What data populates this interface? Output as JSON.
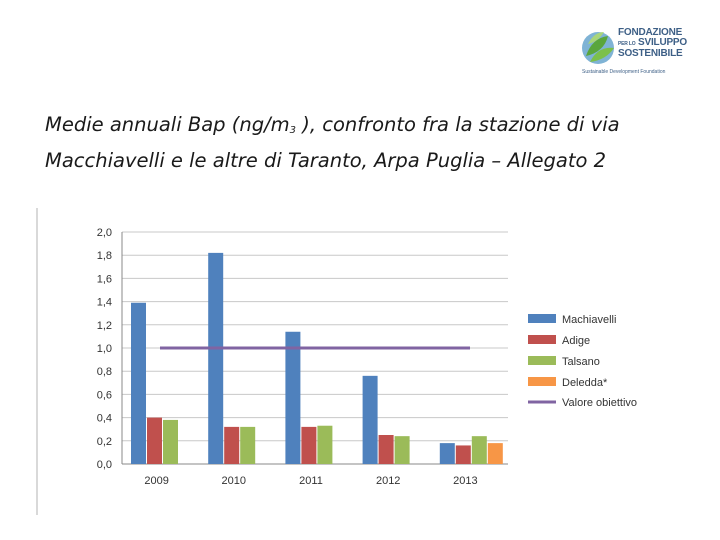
{
  "logo": {
    "line1": "FONDAZIONE",
    "line2_small": "PER LO",
    "line2": "SVILUPPO",
    "line3": "SOSTENIBILE",
    "subtitle": "Sustainable Development Foundation"
  },
  "slide": {
    "title_part1": "Medie annuali Bap (ng/m",
    "title_sub": "3",
    "title_part2": " ), confronto fra la stazione di via Macchiavelli e le altre di Taranto, Arpa Puglia – Allegato 2"
  },
  "chart_data": {
    "type": "bar",
    "categories": [
      "2009",
      "2010",
      "2011",
      "2012",
      "2013"
    ],
    "series": [
      {
        "name": "Machiavelli",
        "color": "#4f81bd",
        "values": [
          1.39,
          1.82,
          1.14,
          0.76,
          0.18
        ]
      },
      {
        "name": "Adige",
        "color": "#c0504d",
        "values": [
          0.4,
          0.32,
          0.32,
          0.25,
          0.16
        ]
      },
      {
        "name": "Talsano",
        "color": "#9bbb59",
        "values": [
          0.38,
          0.32,
          0.33,
          0.24,
          0.24
        ]
      },
      {
        "name": "Deledda*",
        "color": "#f79646",
        "values": [
          null,
          null,
          null,
          null,
          0.18
        ]
      }
    ],
    "reference_line": {
      "name": "Valore obiettivo",
      "value": 1.0,
      "color": "#8064a2"
    },
    "ylim": [
      0,
      2.0
    ],
    "yticks": [
      "0,0",
      "0,2",
      "0,4",
      "0,6",
      "0,8",
      "1,0",
      "1,2",
      "1,4",
      "1,6",
      "1,8",
      "2,0"
    ],
    "grid": true,
    "legend": "right"
  }
}
